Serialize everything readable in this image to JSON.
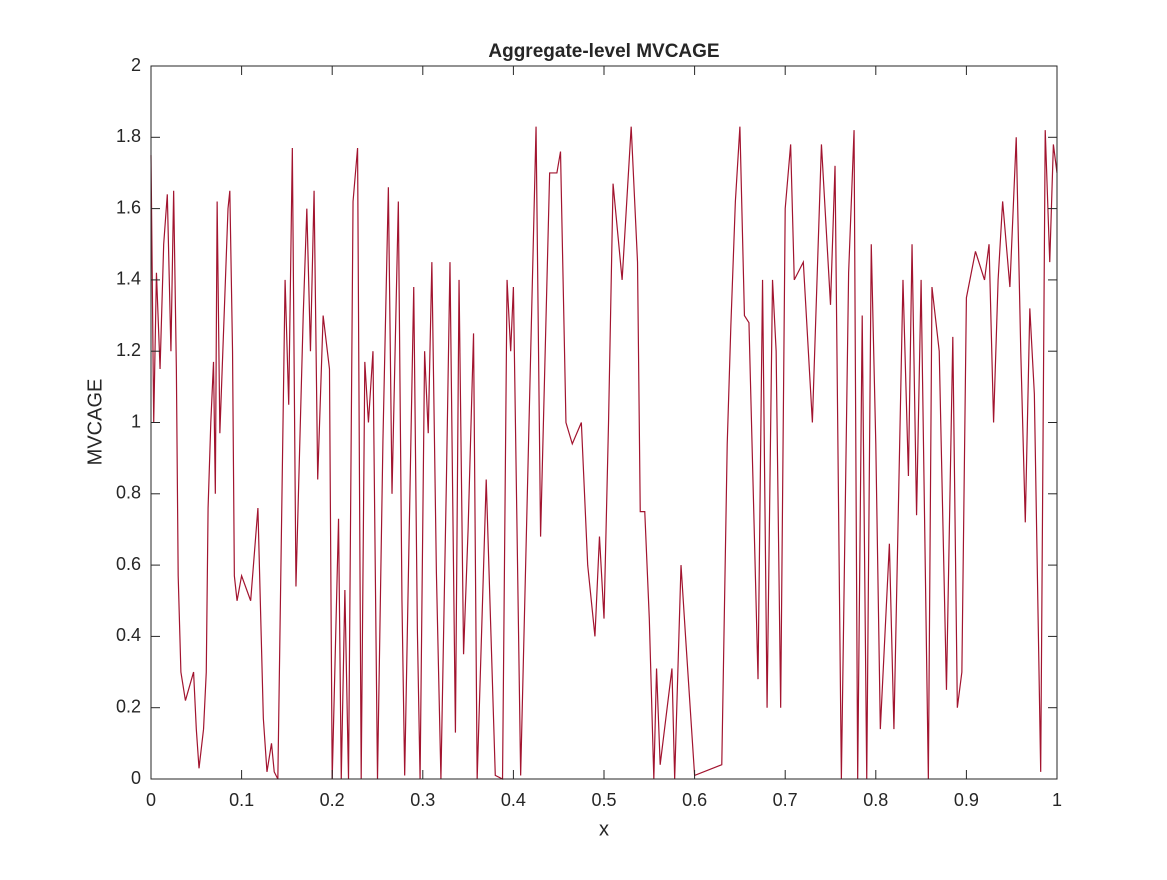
{
  "chart_data": {
    "type": "line",
    "title": "Aggregate-level MVCAGE",
    "x_label": "x",
    "y_label": "MVCAGE",
    "xlim": [
      0,
      1
    ],
    "xticks": [
      0,
      0.1,
      0.2,
      0.3,
      0.4,
      0.5,
      0.6,
      0.7,
      0.8,
      0.9,
      1
    ],
    "ylim": [
      0,
      2
    ],
    "yticks": [
      0,
      0.2,
      0.4,
      0.6,
      0.8,
      1,
      1.2,
      1.4,
      1.6,
      1.8,
      2
    ],
    "series": [
      {
        "color": "#a2142f",
        "x": [
          0,
          0.003,
          0.006,
          0.01,
          0.014,
          0.018,
          0.022,
          0.025,
          0.028,
          0.03,
          0.033,
          0.038,
          0.047,
          0.05,
          0.053,
          0.058,
          0.061,
          0.063,
          0.066,
          0.069,
          0.071,
          0.073,
          0.076,
          0.085,
          0.087,
          0.09,
          0.092,
          0.095,
          0.1,
          0.11,
          0.118,
          0.124,
          0.128,
          0.133,
          0.136,
          0.14,
          0.148,
          0.152,
          0.156,
          0.16,
          0.168,
          0.172,
          0.176,
          0.18,
          0.184,
          0.19,
          0.197,
          0.2,
          0.207,
          0.21,
          0.214,
          0.218,
          0.223,
          0.228,
          0.232,
          0.236,
          0.24,
          0.245,
          0.25,
          0.256,
          0.262,
          0.266,
          0.273,
          0.277,
          0.28,
          0.29,
          0.294,
          0.297,
          0.302,
          0.306,
          0.31,
          0.315,
          0.32,
          0.326,
          0.33,
          0.336,
          0.34,
          0.345,
          0.35,
          0.356,
          0.36,
          0.37,
          0.38,
          0.388,
          0.393,
          0.397,
          0.4,
          0.404,
          0.408,
          0.425,
          0.43,
          0.44,
          0.448,
          0.452,
          0.458,
          0.465,
          0.475,
          0.482,
          0.49,
          0.495,
          0.5,
          0.505,
          0.51,
          0.52,
          0.53,
          0.537,
          0.54,
          0.545,
          0.55,
          0.555,
          0.558,
          0.562,
          0.575,
          0.578,
          0.585,
          0.59,
          0.6,
          0.63,
          0.636,
          0.64,
          0.645,
          0.65,
          0.655,
          0.66,
          0.67,
          0.675,
          0.68,
          0.686,
          0.69,
          0.695,
          0.7,
          0.706,
          0.71,
          0.72,
          0.73,
          0.74,
          0.75,
          0.755,
          0.762,
          0.77,
          0.776,
          0.78,
          0.785,
          0.79,
          0.795,
          0.8,
          0.805,
          0.815,
          0.82,
          0.83,
          0.836,
          0.84,
          0.845,
          0.85,
          0.858,
          0.862,
          0.87,
          0.878,
          0.885,
          0.89,
          0.895,
          0.9,
          0.91,
          0.92,
          0.925,
          0.93,
          0.935,
          0.94,
          0.948,
          0.955,
          0.96,
          0.965,
          0.97,
          0.975,
          0.982,
          0.987,
          0.992,
          0.996,
          1
        ],
        "values": [
          1.75,
          1.0,
          1.42,
          1.15,
          1.5,
          1.64,
          1.2,
          1.65,
          1.15,
          0.57,
          0.3,
          0.22,
          0.3,
          0.14,
          0.03,
          0.14,
          0.3,
          0.76,
          1.0,
          1.17,
          0.8,
          1.62,
          0.97,
          1.6,
          1.65,
          1.2,
          0.57,
          0.5,
          0.57,
          0.5,
          0.76,
          0.17,
          0.02,
          0.1,
          0.02,
          0.0,
          1.4,
          1.05,
          1.77,
          0.54,
          1.3,
          1.6,
          1.2,
          1.65,
          0.84,
          1.3,
          1.15,
          0.0,
          0.73,
          0.0,
          0.53,
          0.0,
          1.62,
          1.77,
          0.0,
          1.17,
          1.0,
          1.2,
          0.0,
          0.95,
          1.66,
          0.8,
          1.62,
          0.5,
          0.01,
          1.38,
          0.42,
          0.0,
          1.2,
          0.97,
          1.45,
          0.58,
          0.0,
          0.83,
          1.45,
          0.13,
          1.4,
          0.35,
          0.7,
          1.25,
          0.0,
          0.84,
          0.01,
          0.0,
          1.4,
          1.2,
          1.38,
          0.7,
          0.01,
          1.83,
          0.68,
          1.7,
          1.7,
          1.76,
          1.0,
          0.94,
          1.0,
          0.6,
          0.4,
          0.68,
          0.45,
          1.0,
          1.67,
          1.4,
          1.83,
          1.45,
          0.75,
          0.75,
          0.45,
          0.0,
          0.31,
          0.04,
          0.31,
          0.0,
          0.6,
          0.4,
          0.01,
          0.04,
          0.94,
          1.27,
          1.62,
          1.83,
          1.3,
          1.28,
          0.28,
          1.4,
          0.2,
          1.4,
          1.2,
          0.2,
          1.6,
          1.78,
          1.4,
          1.45,
          1.0,
          1.78,
          1.33,
          1.72,
          0.0,
          1.42,
          1.82,
          0.0,
          1.3,
          0.0,
          1.5,
          0.94,
          0.14,
          0.66,
          0.14,
          1.4,
          0.85,
          1.5,
          0.74,
          1.4,
          0.0,
          1.38,
          1.2,
          0.25,
          1.24,
          0.2,
          0.3,
          1.35,
          1.48,
          1.4,
          1.5,
          1.0,
          1.4,
          1.62,
          1.38,
          1.8,
          1.2,
          0.72,
          1.32,
          1.08,
          0.02,
          1.82,
          1.45,
          1.78,
          1.7
        ]
      }
    ]
  }
}
